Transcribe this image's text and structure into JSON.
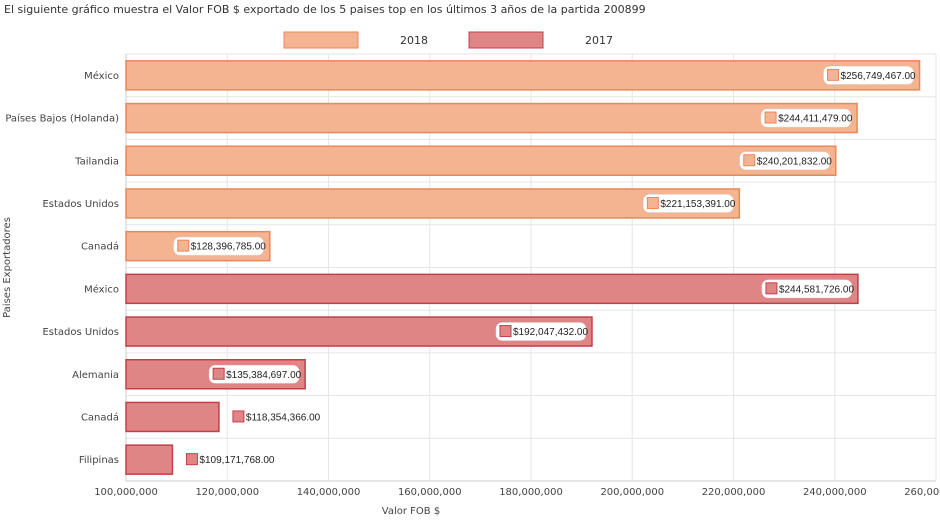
{
  "caption": "El siguiente gráfico muestra el Valor FOB $ exportado de los 5 paises top en los últimos 3 años de la partida 200899",
  "chart_data": {
    "type": "bar",
    "orientation": "horizontal",
    "xlabel": "Valor FOB $",
    "ylabel": "Paises Exportadores",
    "xlim": [
      100000000,
      260000000
    ],
    "xticks": [
      100000000,
      120000000,
      140000000,
      160000000,
      180000000,
      200000000,
      220000000,
      240000000,
      260000000
    ],
    "xtick_labels": [
      "100,000,000",
      "120,000,000",
      "140,000,000",
      "160,000,000",
      "180,000,000",
      "200,000,000",
      "220,000,000",
      "240,000,000",
      "260,000,000"
    ],
    "grid": true,
    "legend_position": "top",
    "series": [
      {
        "name": "2018",
        "color": "#f4b491",
        "border": "#e8875a",
        "categories": [
          "México",
          "Países Bajos (Holanda)",
          "Tailandia",
          "Estados Unidos",
          "Canadá"
        ],
        "values": [
          256749467.0,
          244411479.0,
          240201832.0,
          221153391.0,
          128396785.0
        ],
        "labels": [
          "$256,749,467.00",
          "$244,411,479.00",
          "$240,201,832.00",
          "$221,153,391.00",
          "$128,396,785.00"
        ]
      },
      {
        "name": "2017",
        "color": "#e08585",
        "border": "#c0404a",
        "categories": [
          "México",
          "Estados Unidos",
          "Alemania",
          "Canadá",
          "Filipinas"
        ],
        "values": [
          244581726.0,
          192047432.0,
          135384697.0,
          118354366.0,
          109171768.0
        ],
        "labels": [
          "$244,581,726.00",
          "$192,047,432.00",
          "$135,384,697.00",
          "$118,354,366.00",
          "$109,171,768.00"
        ]
      }
    ]
  }
}
